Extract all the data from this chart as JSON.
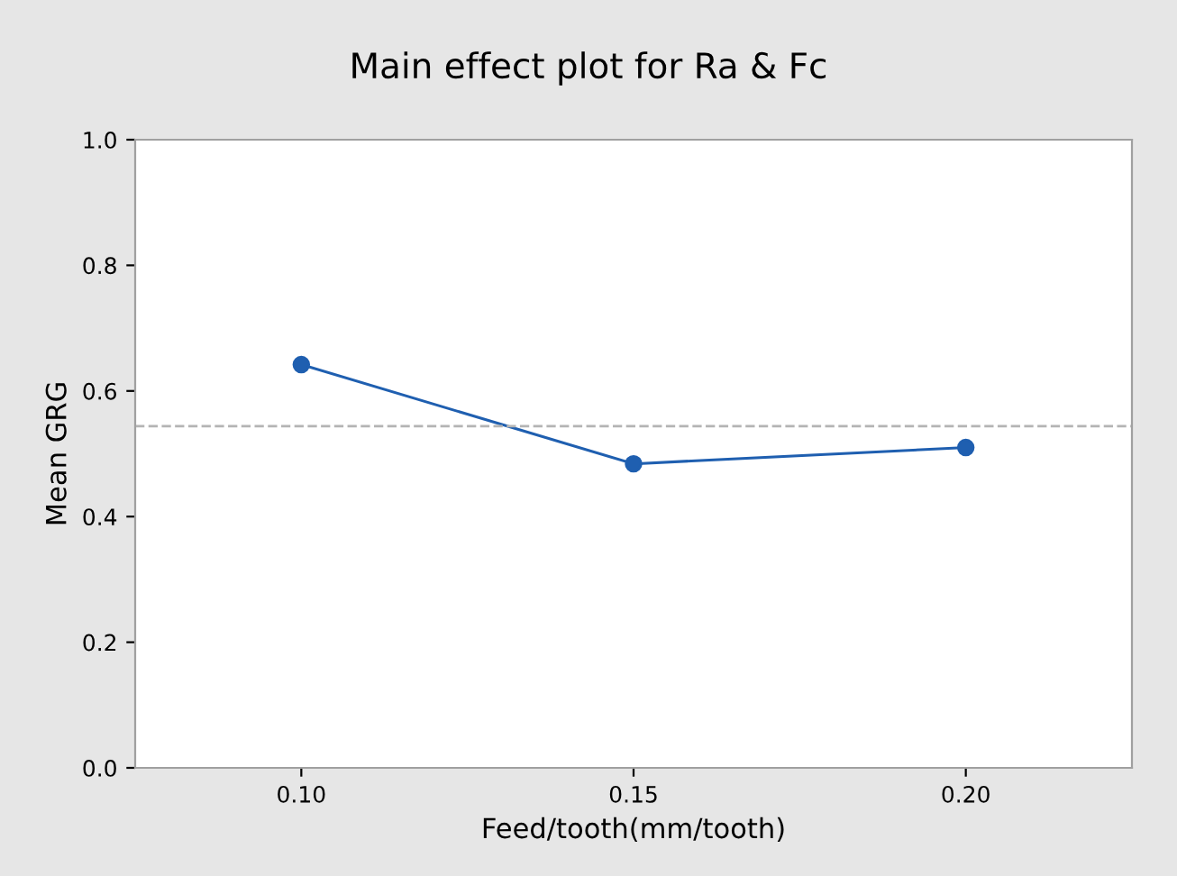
{
  "chart_data": {
    "type": "line",
    "title": "Main effect plot for Ra & Fc",
    "xlabel": "Feed/tooth(mm/tooth)",
    "ylabel": "Mean GRG",
    "categories": [
      "0.10",
      "0.15",
      "0.20"
    ],
    "series": [
      {
        "color": "#1f5fb0",
        "values": [
          0.642,
          0.484,
          0.51
        ]
      }
    ],
    "ylim": [
      0,
      1
    ],
    "yticks": [
      {
        "value": 0,
        "label": "0.0"
      },
      {
        "value": 0.2,
        "label": "0.2"
      },
      {
        "value": 0.4,
        "label": "0.4"
      },
      {
        "value": 0.6,
        "label": "0.6"
      },
      {
        "value": 0.8,
        "label": "0.8"
      },
      {
        "value": 1,
        "label": "1.0"
      }
    ],
    "ref_lines": [
      {
        "axis": "y",
        "value": 0.544,
        "color": "#b4b4b4",
        "line_style": "dashed"
      }
    ],
    "marker": "circle",
    "line_style": "solid",
    "grid": false,
    "legend": false
  }
}
